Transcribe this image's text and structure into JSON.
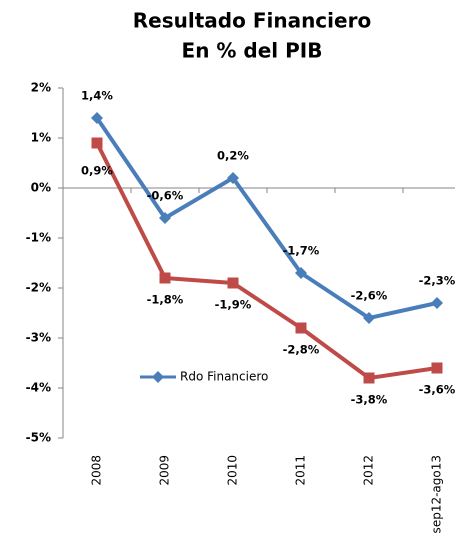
{
  "chart_data": {
    "type": "line",
    "title": "Resultado Financiero",
    "subtitle": "En % del PIB",
    "categories": [
      "2008",
      "2009",
      "2010",
      "2011",
      "2012",
      "sep12-ago13"
    ],
    "series": [
      {
        "name": "Rdo Financiero",
        "color": "#4a7ebb",
        "marker": "diamond",
        "values": [
          1.4,
          -0.6,
          0.2,
          -1.7,
          -2.6,
          -2.3
        ],
        "value_labels": [
          "1,4%",
          "-0,6%",
          "0,2%",
          "-1,7%",
          "-2,6%",
          "-2,3%"
        ]
      },
      {
        "color": "#be4b48",
        "marker": "square",
        "values": [
          0.9,
          -1.8,
          -1.9,
          -2.8,
          -3.8,
          -3.6
        ],
        "value_labels": [
          "0,9%",
          "-1,8%",
          "-1,9%",
          "-2,8%",
          "-3,8%",
          "-3,6%"
        ]
      }
    ],
    "ylim": [
      -5,
      2
    ],
    "yticks": [
      {
        "value": 2,
        "label": "2%"
      },
      {
        "value": 1,
        "label": "1%"
      },
      {
        "value": 0,
        "label": "0%"
      },
      {
        "value": -1,
        "label": "-1%"
      },
      {
        "value": -2,
        "label": "-2%"
      },
      {
        "value": -3,
        "label": "-3%"
      },
      {
        "value": -4,
        "label": "-4%"
      },
      {
        "value": -5,
        "label": "-5%"
      }
    ]
  }
}
